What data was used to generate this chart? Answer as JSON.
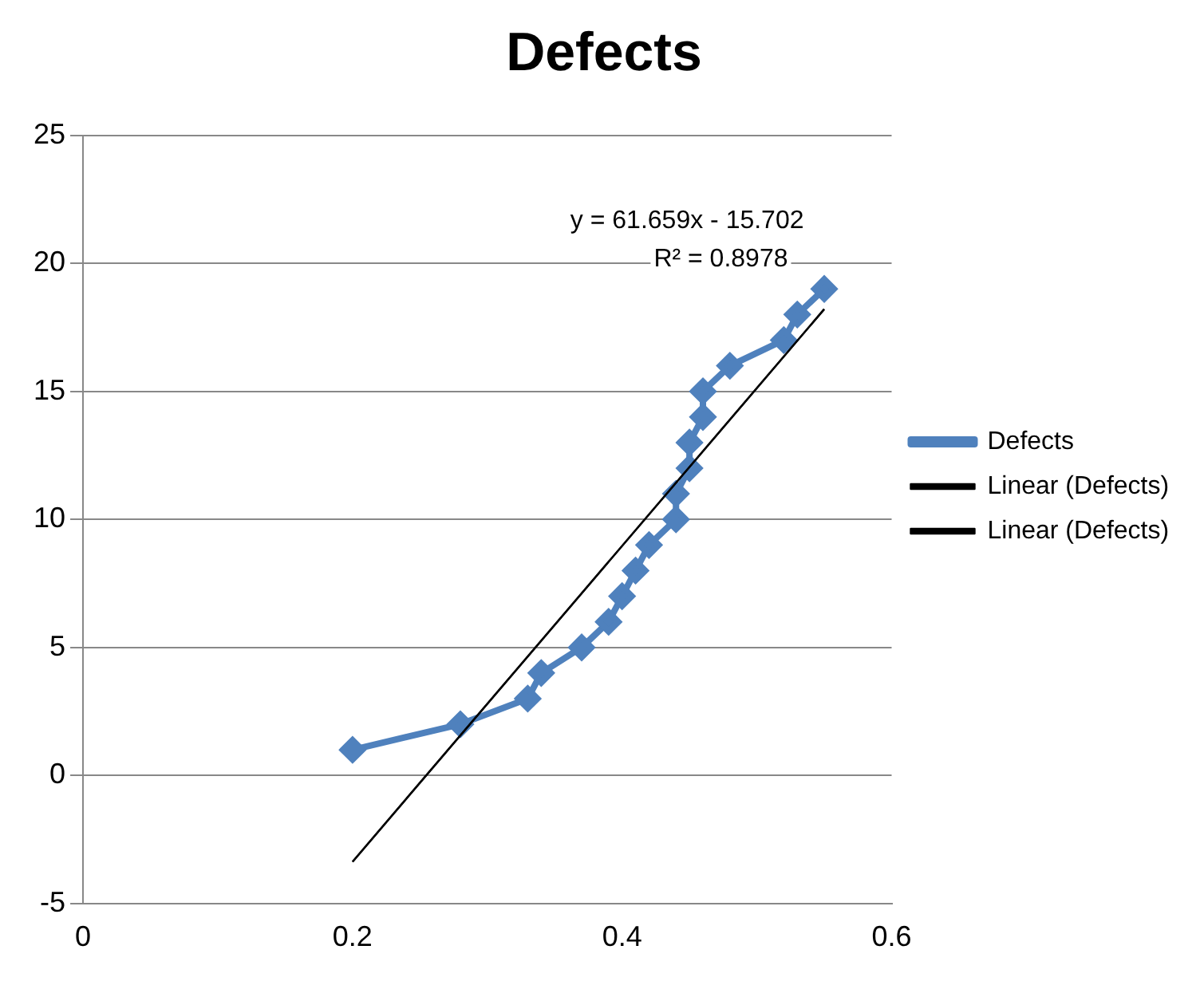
{
  "chart_data": {
    "type": "scatter",
    "title": "Defects",
    "series": [
      {
        "name": "Defects",
        "type": "line",
        "color": "#4f81bd",
        "marker": "diamond",
        "x": [
          0.2,
          0.28,
          0.33,
          0.34,
          0.37,
          0.39,
          0.4,
          0.41,
          0.42,
          0.44,
          0.44,
          0.45,
          0.45,
          0.46,
          0.46,
          0.48,
          0.52,
          0.53,
          0.55
        ],
        "values": [
          1,
          2,
          3,
          4,
          5,
          6,
          7,
          8,
          9,
          10,
          11,
          12,
          13,
          14,
          15,
          16,
          17,
          18,
          19
        ]
      },
      {
        "name": "Linear (Defects)",
        "type": "line",
        "color": "#000000",
        "marker": "none",
        "x": [
          0.2,
          0.55
        ],
        "values": [
          -3.37,
          18.21
        ]
      },
      {
        "name": "Linear (Defects)",
        "type": "line",
        "color": "#000000",
        "marker": "none",
        "x": [
          0.2,
          0.55
        ],
        "values": [
          -3.37,
          18.21
        ]
      }
    ],
    "annotations": [
      "y = 61.659x - 15.702",
      "R² = 0.8978"
    ],
    "xlim": [
      0,
      0.6
    ],
    "xticks": [
      0,
      0.2,
      0.4,
      0.6
    ],
    "ylim": [
      -5,
      25
    ],
    "yticks": [
      -5,
      0,
      5,
      10,
      15,
      20,
      25
    ],
    "grid": "y",
    "legend": "right"
  }
}
